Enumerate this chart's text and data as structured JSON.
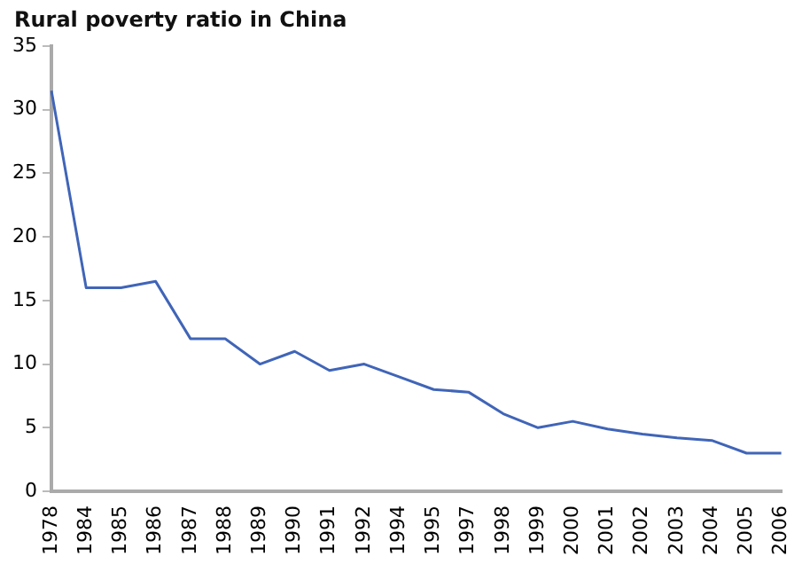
{
  "chart_data": {
    "type": "line",
    "title": "Rural poverty ratio in China",
    "categories": [
      "1978",
      "1984",
      "1985",
      "1986",
      "1987",
      "1988",
      "1989",
      "1990",
      "1991",
      "1992",
      "1994",
      "1995",
      "1997",
      "1998",
      "1999",
      "2000",
      "2001",
      "2002",
      "2003",
      "2004",
      "2005",
      "2006"
    ],
    "series": [
      {
        "color": "#4065b8",
        "values": [
          31.5,
          16,
          16,
          16.5,
          12,
          12,
          10,
          11,
          9.5,
          10,
          9,
          8,
          7.8,
          6.1,
          5,
          5.5,
          4.9,
          4.5,
          4.2,
          4,
          3,
          3
        ]
      }
    ],
    "ylim": [
      0,
      35
    ],
    "yticks": [
      0,
      5,
      10,
      15,
      20,
      25,
      30,
      35
    ],
    "grid": false,
    "legend": false,
    "marker": "none",
    "line_style": "solid"
  }
}
